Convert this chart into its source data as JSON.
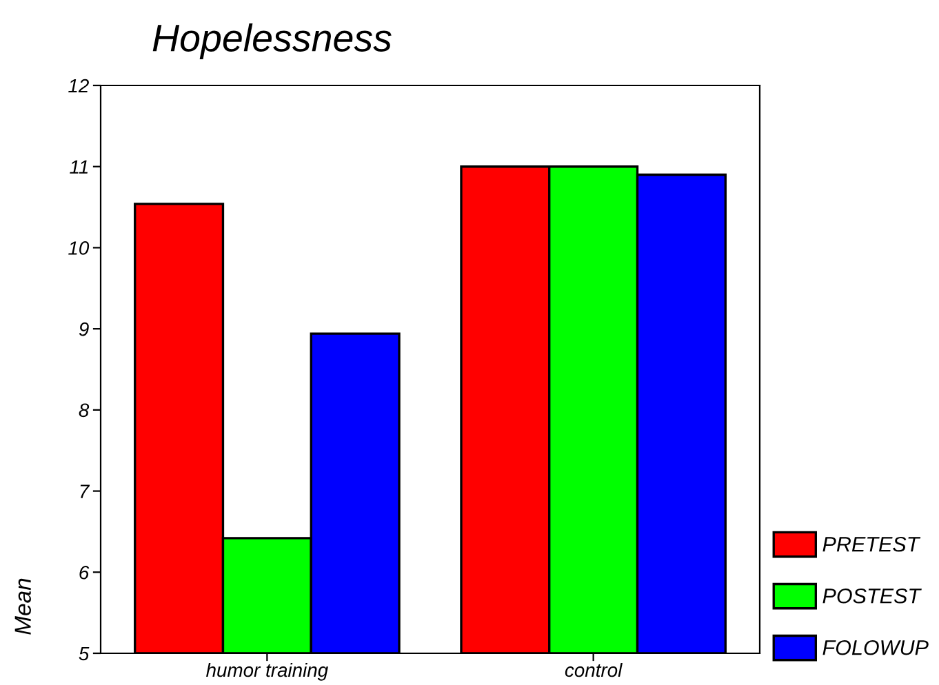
{
  "chart_data": {
    "type": "bar",
    "title": "Hopelessness",
    "ylabel": "Mean",
    "categories": [
      "humor training",
      "control"
    ],
    "series": [
      {
        "name": "PRETEST",
        "color": "#ff0000",
        "values": [
          10.54,
          11.0
        ]
      },
      {
        "name": "POSTEST",
        "color": "#00ff00",
        "values": [
          6.42,
          11.0
        ]
      },
      {
        "name": "FOLOWUP",
        "color": "#0000ff",
        "values": [
          8.94,
          10.9
        ]
      }
    ],
    "ylim": [
      5,
      12
    ],
    "yticks": [
      5,
      6,
      7,
      8,
      9,
      10,
      11,
      12
    ],
    "grid": false,
    "legend": "bottom right"
  }
}
